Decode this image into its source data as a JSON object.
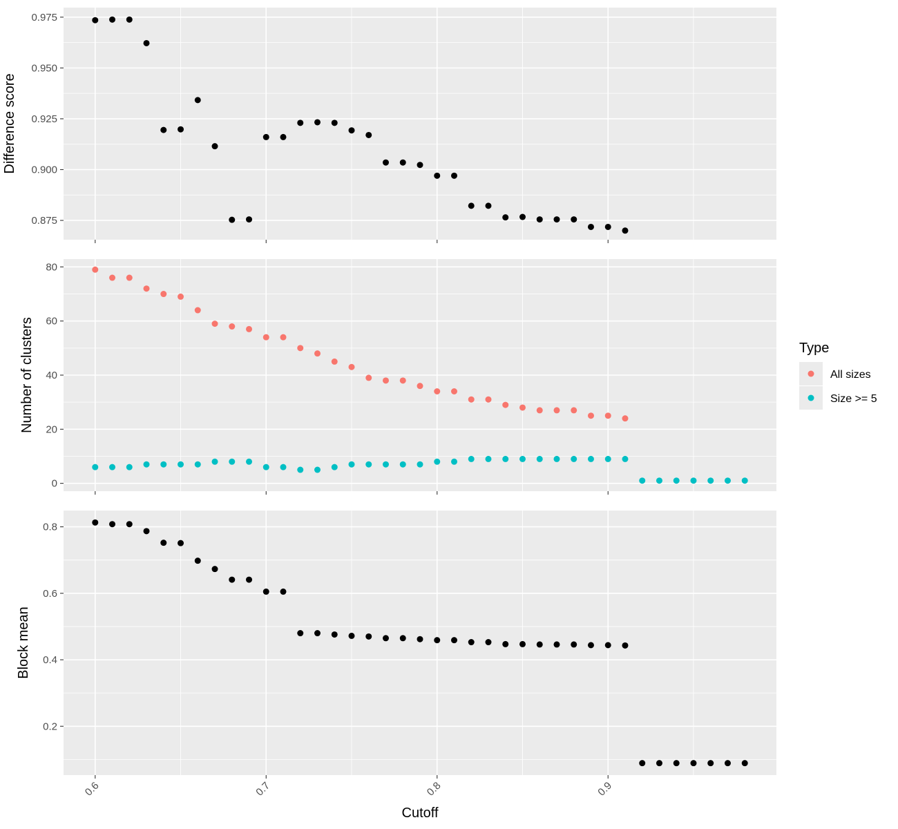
{
  "chart_data": {
    "type": "scatter",
    "shared_x": {
      "label": "Cutoff",
      "lim": [
        0.5815,
        0.9985
      ],
      "ticks": [
        0.6,
        0.7,
        0.8,
        0.9
      ],
      "tick_labels": [
        "0.6",
        "0.7",
        "0.8",
        "0.9"
      ]
    },
    "grid": true,
    "theme": {
      "panel_bg": "#ebebeb",
      "grid_color": "#ffffff",
      "point_default": "#000000"
    },
    "legend": {
      "title": "Type",
      "placement": "right",
      "entries": [
        {
          "label": "All sizes",
          "color": "#F8766D"
        },
        {
          "label": "Size >= 5",
          "color": "#00BFC4"
        }
      ]
    },
    "panels": [
      {
        "ylabel": "Difference score",
        "ylim": [
          0.8655,
          0.9797
        ],
        "yticks": [
          0.875,
          0.9,
          0.925,
          0.95,
          0.975
        ],
        "ytick_labels": [
          "0.875",
          "0.900",
          "0.925",
          "0.950",
          "0.975"
        ],
        "series": [
          {
            "color": "#000000",
            "points": [
              [
                0.6,
                0.9735
              ],
              [
                0.61,
                0.9738
              ],
              [
                0.62,
                0.9738
              ],
              [
                0.63,
                0.9622
              ],
              [
                0.64,
                0.9195
              ],
              [
                0.65,
                0.9198
              ],
              [
                0.66,
                0.9342
              ],
              [
                0.67,
                0.9115
              ],
              [
                0.68,
                0.8753
              ],
              [
                0.69,
                0.8755
              ],
              [
                0.7,
                0.916
              ],
              [
                0.71,
                0.916
              ],
              [
                0.72,
                0.923
              ],
              [
                0.73,
                0.9233
              ],
              [
                0.74,
                0.923
              ],
              [
                0.75,
                0.9193
              ],
              [
                0.76,
                0.917
              ],
              [
                0.77,
                0.9035
              ],
              [
                0.78,
                0.9035
              ],
              [
                0.79,
                0.9023
              ],
              [
                0.8,
                0.897
              ],
              [
                0.81,
                0.897
              ],
              [
                0.82,
                0.8822
              ],
              [
                0.83,
                0.8822
              ],
              [
                0.84,
                0.8765
              ],
              [
                0.85,
                0.8767
              ],
              [
                0.86,
                0.8755
              ],
              [
                0.87,
                0.8755
              ],
              [
                0.88,
                0.8755
              ],
              [
                0.89,
                0.8718
              ],
              [
                0.9,
                0.8718
              ],
              [
                0.91,
                0.87
              ]
            ]
          }
        ]
      },
      {
        "ylabel": "Number of clusters",
        "ylim": [
          -2.9,
          82.9
        ],
        "yticks": [
          0,
          20,
          40,
          60,
          80
        ],
        "ytick_labels": [
          "0",
          "20",
          "40",
          "60",
          "80"
        ],
        "series": [
          {
            "name": "All sizes",
            "color": "#F8766D",
            "points": [
              [
                0.6,
                79
              ],
              [
                0.61,
                76
              ],
              [
                0.62,
                76
              ],
              [
                0.63,
                72
              ],
              [
                0.64,
                70
              ],
              [
                0.65,
                69
              ],
              [
                0.66,
                64
              ],
              [
                0.67,
                59
              ],
              [
                0.68,
                58
              ],
              [
                0.69,
                57
              ],
              [
                0.7,
                54
              ],
              [
                0.71,
                54
              ],
              [
                0.72,
                50
              ],
              [
                0.73,
                48
              ],
              [
                0.74,
                45
              ],
              [
                0.75,
                43
              ],
              [
                0.76,
                39
              ],
              [
                0.77,
                38
              ],
              [
                0.78,
                38
              ],
              [
                0.79,
                36
              ],
              [
                0.8,
                34
              ],
              [
                0.81,
                34
              ],
              [
                0.82,
                31
              ],
              [
                0.83,
                31
              ],
              [
                0.84,
                29
              ],
              [
                0.85,
                28
              ],
              [
                0.86,
                27
              ],
              [
                0.87,
                27
              ],
              [
                0.88,
                27
              ],
              [
                0.89,
                25
              ],
              [
                0.9,
                25
              ],
              [
                0.91,
                24
              ]
            ]
          },
          {
            "name": "Size >= 5",
            "color": "#00BFC4",
            "points": [
              [
                0.6,
                6
              ],
              [
                0.61,
                6
              ],
              [
                0.62,
                6
              ],
              [
                0.63,
                7
              ],
              [
                0.64,
                7
              ],
              [
                0.65,
                7
              ],
              [
                0.66,
                7
              ],
              [
                0.67,
                8
              ],
              [
                0.68,
                8
              ],
              [
                0.69,
                8
              ],
              [
                0.7,
                6
              ],
              [
                0.71,
                6
              ],
              [
                0.72,
                5
              ],
              [
                0.73,
                5
              ],
              [
                0.74,
                6
              ],
              [
                0.75,
                7
              ],
              [
                0.76,
                7
              ],
              [
                0.77,
                7
              ],
              [
                0.78,
                7
              ],
              [
                0.79,
                7
              ],
              [
                0.8,
                8
              ],
              [
                0.81,
                8
              ],
              [
                0.82,
                9
              ],
              [
                0.83,
                9
              ],
              [
                0.84,
                9
              ],
              [
                0.85,
                9
              ],
              [
                0.86,
                9
              ],
              [
                0.87,
                9
              ],
              [
                0.88,
                9
              ],
              [
                0.89,
                9
              ],
              [
                0.9,
                9
              ],
              [
                0.91,
                9
              ],
              [
                0.92,
                1
              ],
              [
                0.93,
                1
              ],
              [
                0.94,
                1
              ],
              [
                0.95,
                1
              ],
              [
                0.96,
                1
              ],
              [
                0.97,
                1
              ],
              [
                0.98,
                1
              ]
            ]
          }
        ]
      },
      {
        "ylabel": "Block mean",
        "ylim": [
          0.053,
          0.849
        ],
        "yticks": [
          0.2,
          0.4,
          0.6,
          0.8
        ],
        "ytick_labels": [
          "0.2",
          "0.4",
          "0.6",
          "0.8"
        ],
        "series": [
          {
            "color": "#000000",
            "points": [
              [
                0.6,
                0.813
              ],
              [
                0.61,
                0.808
              ],
              [
                0.62,
                0.808
              ],
              [
                0.63,
                0.787
              ],
              [
                0.64,
                0.752
              ],
              [
                0.65,
                0.751
              ],
              [
                0.66,
                0.698
              ],
              [
                0.67,
                0.673
              ],
              [
                0.68,
                0.641
              ],
              [
                0.69,
                0.641
              ],
              [
                0.7,
                0.605
              ],
              [
                0.71,
                0.605
              ],
              [
                0.72,
                0.48
              ],
              [
                0.73,
                0.48
              ],
              [
                0.74,
                0.476
              ],
              [
                0.75,
                0.472
              ],
              [
                0.76,
                0.47
              ],
              [
                0.77,
                0.465
              ],
              [
                0.78,
                0.465
              ],
              [
                0.79,
                0.462
              ],
              [
                0.8,
                0.459
              ],
              [
                0.81,
                0.459
              ],
              [
                0.82,
                0.453
              ],
              [
                0.83,
                0.453
              ],
              [
                0.84,
                0.447
              ],
              [
                0.85,
                0.447
              ],
              [
                0.86,
                0.446
              ],
              [
                0.87,
                0.446
              ],
              [
                0.88,
                0.446
              ],
              [
                0.89,
                0.444
              ],
              [
                0.9,
                0.444
              ],
              [
                0.91,
                0.443
              ],
              [
                0.92,
                0.089
              ],
              [
                0.93,
                0.089
              ],
              [
                0.94,
                0.089
              ],
              [
                0.95,
                0.089
              ],
              [
                0.96,
                0.089
              ],
              [
                0.97,
                0.089
              ],
              [
                0.98,
                0.089
              ]
            ]
          }
        ]
      }
    ]
  }
}
